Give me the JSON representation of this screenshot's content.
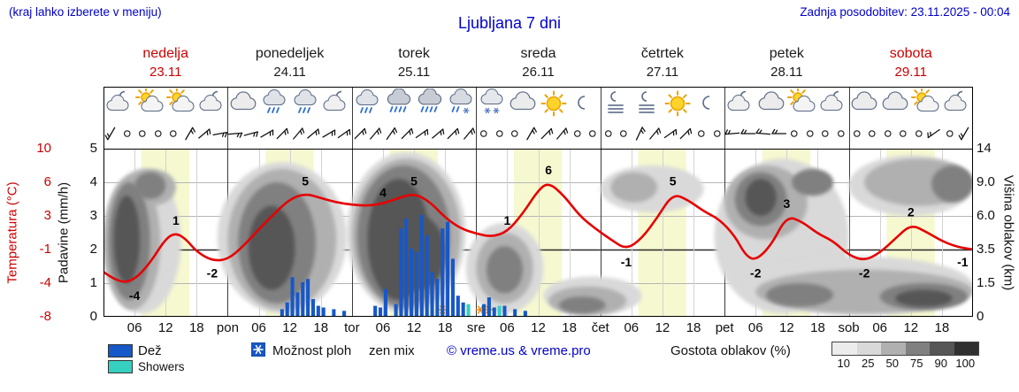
{
  "header": {
    "hint": "(kraj lahko izberete v meniju)",
    "title": "Ljubljana 7 dni",
    "updated": "Zadnja posodobitev: 23.11.2025 - 00:04"
  },
  "days": [
    {
      "name": "nedelja",
      "date": "23.11",
      "weekend": true
    },
    {
      "name": "ponedeljek",
      "date": "24.11",
      "weekend": false
    },
    {
      "name": "torek",
      "date": "25.11",
      "weekend": false
    },
    {
      "name": "sreda",
      "date": "26.11",
      "weekend": false
    },
    {
      "name": "četrtek",
      "date": "27.11",
      "weekend": false
    },
    {
      "name": "petek",
      "date": "28.11",
      "weekend": false
    },
    {
      "name": "sobota",
      "date": "29.11",
      "weekend": true
    }
  ],
  "axes": {
    "temp": {
      "label": "Temperatura (°C)",
      "ticks": [
        "10",
        "6",
        "3",
        "-1",
        "-4",
        "-8"
      ]
    },
    "precip": {
      "label": "Padavine (mm/h)",
      "ticks": [
        "5",
        "4",
        "3",
        "2",
        "1",
        "0"
      ]
    },
    "cloud": {
      "label": "Višina oblakov (km)",
      "ticks": [
        "14",
        "9.0",
        "6.0",
        "3.5",
        "1.5",
        "0"
      ]
    },
    "x": {
      "hour_labels": [
        "06",
        "12",
        "18"
      ],
      "day_abbrevs": [
        "pon",
        "tor",
        "sre",
        "čet",
        "pet",
        "sob"
      ]
    }
  },
  "legend": {
    "rain": "Dež",
    "showers": "Showers",
    "chance": "Možnost ploh",
    "mix": "zen mix",
    "copyright": "© vreme.us & vreme.pro",
    "cloud_density": "Gostota oblakov (%)",
    "density_ticks": [
      "10",
      "25",
      "50",
      "75",
      "90",
      "100"
    ]
  },
  "colors": {
    "accent_blue": "#0000cc",
    "day_red": "#cc0000",
    "temp_line": "#e60000",
    "rain": "#1758c8",
    "shower": "#36d0c0",
    "daylight_band": "#f6f9d0",
    "chance_marker": "#f08c00",
    "cloud_scale": [
      "#ececec",
      "#d9d9d9",
      "#b0b0b0",
      "#808080",
      "#565656",
      "#303030"
    ]
  },
  "chart_data": {
    "type": "mixed",
    "x_unit": "hours since Sun 23.11 00:00",
    "x_range": [
      0,
      168
    ],
    "temperature_scale_c": [
      -8,
      -4,
      -1,
      3,
      6,
      10
    ],
    "precip_scale_mm_h": [
      0,
      5
    ],
    "cloud_height_scale_km": [
      0,
      1.5,
      3.5,
      6.0,
      9.0,
      14
    ],
    "daylight_hours": {
      "from": 7.3,
      "to": 16.6
    },
    "temperature_c": [
      [
        0,
        -3
      ],
      [
        3,
        -4
      ],
      [
        6,
        -3.7
      ],
      [
        9,
        -2.2
      ],
      [
        12,
        0.3
      ],
      [
        14,
        1
      ],
      [
        16,
        0.2
      ],
      [
        18,
        -1.2
      ],
      [
        21,
        -2
      ],
      [
        24,
        -1.9
      ],
      [
        27,
        -0.6
      ],
      [
        30,
        1.4
      ],
      [
        33,
        3.2
      ],
      [
        36,
        4.5
      ],
      [
        39,
        5
      ],
      [
        42,
        4.6
      ],
      [
        45,
        4.2
      ],
      [
        48,
        4
      ],
      [
        51,
        3.9
      ],
      [
        54,
        4.1
      ],
      [
        57,
        4.6
      ],
      [
        60,
        5
      ],
      [
        63,
        4.3
      ],
      [
        66,
        2.8
      ],
      [
        69,
        1.5
      ],
      [
        72,
        0.9
      ],
      [
        75,
        0.5
      ],
      [
        78,
        1.1
      ],
      [
        81,
        3.2
      ],
      [
        84,
        5.3
      ],
      [
        86,
        6
      ],
      [
        89,
        4.8
      ],
      [
        92,
        3
      ],
      [
        95,
        1.5
      ],
      [
        98,
        0.2
      ],
      [
        101,
        -1
      ],
      [
        104,
        0.3
      ],
      [
        107,
        2.8
      ],
      [
        110,
        5
      ],
      [
        113,
        4.4
      ],
      [
        116,
        3.4
      ],
      [
        119,
        2.6
      ],
      [
        122,
        0.6
      ],
      [
        124,
        -1.5
      ],
      [
        126,
        -2
      ],
      [
        129,
        -0.5
      ],
      [
        132,
        3
      ],
      [
        135,
        2.3
      ],
      [
        138,
        0.9
      ],
      [
        141,
        0
      ],
      [
        144,
        -1.5
      ],
      [
        147,
        -2
      ],
      [
        150,
        -1.3
      ],
      [
        153,
        0.3
      ],
      [
        156,
        2
      ],
      [
        159,
        1.1
      ],
      [
        162,
        0
      ],
      [
        165,
        -0.7
      ],
      [
        168,
        -1
      ]
    ],
    "temperature_labels": [
      {
        "h": 6,
        "v": -4,
        "p": "b"
      },
      {
        "h": 14,
        "v": 1,
        "p": "a"
      },
      {
        "h": 21,
        "v": -2,
        "p": "b"
      },
      {
        "h": 39,
        "v": 5,
        "p": "a"
      },
      {
        "h": 54,
        "v": 4,
        "p": "a"
      },
      {
        "h": 60,
        "v": 5,
        "p": "a"
      },
      {
        "h": 78,
        "v": 1,
        "p": "a"
      },
      {
        "h": 86,
        "v": 6,
        "p": "a"
      },
      {
        "h": 101,
        "v": -1,
        "p": "b"
      },
      {
        "h": 110,
        "v": 5,
        "p": "a"
      },
      {
        "h": 126,
        "v": -2,
        "p": "b"
      },
      {
        "h": 132,
        "v": 3,
        "p": "a"
      },
      {
        "h": 147,
        "v": -2,
        "p": "b"
      },
      {
        "h": 156,
        "v": 2,
        "p": "a"
      },
      {
        "h": 166,
        "v": -1,
        "p": "b"
      }
    ],
    "rain_mm_h": [
      [
        34,
        0.2
      ],
      [
        35,
        0.4
      ],
      [
        36,
        1.15
      ],
      [
        37,
        0.7
      ],
      [
        38,
        1.0
      ],
      [
        39,
        1.1
      ],
      [
        40,
        0.5
      ],
      [
        41,
        0.3
      ],
      [
        42,
        0.25
      ],
      [
        44,
        0.2
      ],
      [
        46,
        0.15
      ],
      [
        52,
        0.3
      ],
      [
        53,
        0.25
      ],
      [
        54,
        0.8
      ],
      [
        56,
        0.35
      ],
      [
        57,
        2.6
      ],
      [
        58,
        2.9
      ],
      [
        59,
        2.0
      ],
      [
        60,
        1.9
      ],
      [
        61,
        3.0
      ],
      [
        62,
        2.4
      ],
      [
        63,
        1.3
      ],
      [
        64,
        1.1
      ],
      [
        65,
        2.6
      ],
      [
        66,
        2.8
      ],
      [
        67,
        1.7
      ],
      [
        68,
        0.6
      ],
      [
        69,
        0.4
      ],
      [
        73,
        0.35
      ],
      [
        74,
        0.55
      ],
      [
        75,
        0.25
      ],
      [
        77,
        0.3
      ],
      [
        79,
        0.2
      ],
      [
        81,
        0.15
      ]
    ],
    "showers_mm_h": [
      [
        70,
        0.35
      ],
      [
        76,
        0.3
      ]
    ],
    "shower_chance_h": [
      65.5,
      72.8,
      74.4
    ],
    "clouds": [
      {
        "h0": 0,
        "h1": 15,
        "g0": 0.1,
        "g1": 4.4,
        "d": 25
      },
      {
        "h0": 22,
        "h1": 47,
        "g0": 0.1,
        "g1": 4.6,
        "d": 25
      },
      {
        "h0": 47,
        "h1": 70,
        "g0": 0.1,
        "g1": 4.9,
        "d": 25
      },
      {
        "h0": 70,
        "h1": 85,
        "g0": 0.1,
        "g1": 2.8,
        "d": 25
      },
      {
        "h0": 85,
        "h1": 104,
        "g0": 0.05,
        "g1": 1.2,
        "d": 25
      },
      {
        "h0": 96,
        "h1": 116,
        "g0": 3.1,
        "g1": 4.5,
        "d": 25
      },
      {
        "h0": 118,
        "h1": 144,
        "g0": 0.1,
        "g1": 4.7,
        "d": 25
      },
      {
        "h0": 124,
        "h1": 168,
        "g0": 0.05,
        "g1": 1.8,
        "d": 25
      },
      {
        "h0": 144,
        "h1": 168,
        "g0": 3.0,
        "g1": 4.8,
        "d": 25
      },
      {
        "h0": 0,
        "h1": 11,
        "g0": 0.2,
        "g1": 4.2,
        "d": 50
      },
      {
        "h0": 4,
        "h1": 14,
        "g0": 3.3,
        "g1": 4.4,
        "d": 50
      },
      {
        "h0": 24,
        "h1": 45,
        "g0": 0.2,
        "g1": 4.4,
        "d": 50
      },
      {
        "h0": 48,
        "h1": 69,
        "g0": 0.2,
        "g1": 4.7,
        "d": 50
      },
      {
        "h0": 72,
        "h1": 83,
        "g0": 0.4,
        "g1": 2.5,
        "d": 50
      },
      {
        "h0": 86,
        "h1": 101,
        "g0": 0.05,
        "g1": 0.9,
        "d": 50
      },
      {
        "h0": 98,
        "h1": 107,
        "g0": 3.4,
        "g1": 4.3,
        "d": 50
      },
      {
        "h0": 120,
        "h1": 136,
        "g0": 2.3,
        "g1": 4.5,
        "d": 50
      },
      {
        "h0": 126,
        "h1": 168,
        "g0": 0.1,
        "g1": 1.4,
        "d": 50
      },
      {
        "h0": 147,
        "h1": 168,
        "g0": 3.3,
        "g1": 4.7,
        "d": 50
      },
      {
        "h0": 1,
        "h1": 9,
        "g0": 0.5,
        "g1": 4.0,
        "d": 75
      },
      {
        "h0": 6,
        "h1": 12,
        "g0": 3.5,
        "g1": 4.3,
        "d": 75
      },
      {
        "h0": 26,
        "h1": 41,
        "g0": 0.4,
        "g1": 4.0,
        "d": 75
      },
      {
        "h0": 49,
        "h1": 67,
        "g0": 0.3,
        "g1": 4.5,
        "d": 75
      },
      {
        "h0": 74,
        "h1": 81,
        "g0": 0.7,
        "g1": 2.1,
        "d": 75
      },
      {
        "h0": 88,
        "h1": 97,
        "g0": 0.1,
        "g1": 0.6,
        "d": 75
      },
      {
        "h0": 122,
        "h1": 132,
        "g0": 2.7,
        "g1": 4.3,
        "d": 75
      },
      {
        "h0": 133,
        "h1": 141,
        "g0": 3.6,
        "g1": 4.4,
        "d": 75
      },
      {
        "h0": 128,
        "h1": 141,
        "g0": 0.3,
        "g1": 1.0,
        "d": 75
      },
      {
        "h0": 150,
        "h1": 167,
        "g0": 0.2,
        "g1": 1.0,
        "d": 75
      },
      {
        "h0": 160,
        "h1": 168,
        "g0": 3.4,
        "g1": 4.5,
        "d": 75
      },
      {
        "h0": 2,
        "h1": 7,
        "g0": 1.0,
        "g1": 3.6,
        "d": 90
      },
      {
        "h0": 28,
        "h1": 37,
        "g0": 0.8,
        "g1": 3.3,
        "d": 90
      },
      {
        "h0": 51,
        "h1": 63,
        "g0": 0.5,
        "g1": 4.1,
        "d": 90
      },
      {
        "h0": 56,
        "h1": 66,
        "g0": 0.8,
        "g1": 3.0,
        "d": 90
      },
      {
        "h0": 124,
        "h1": 130,
        "g0": 3.0,
        "g1": 4.1,
        "d": 90
      },
      {
        "h0": 153,
        "h1": 164,
        "g0": 0.3,
        "g1": 0.8,
        "d": 90
      }
    ],
    "weather_icons": [
      "cloud-moon",
      "partly-sunny",
      "partly-sunny",
      "cloud-moon",
      "cloud",
      "rain",
      "rain",
      "cloud-moon",
      "rain",
      "heavy-rain",
      "heavy-rain",
      "sleet",
      "snow",
      "cloud",
      "sunny",
      "moon",
      "fog-moon",
      "fog-moon",
      "sunny",
      "moon",
      "cloud-moon",
      "cloud",
      "partly-sunny",
      "cloud-moon",
      "cloud",
      "cloud",
      "partly-sunny",
      "cloud-moon"
    ],
    "wind": [
      "b210",
      "c",
      "c",
      "c",
      "c",
      "b30",
      "b50",
      "b80",
      "b85",
      "b75",
      "b60",
      "b45",
      "b40",
      "b50",
      "b60",
      "b55",
      "b45",
      "b40",
      "b35",
      "b45",
      "b55",
      "b50",
      "b45",
      "b40",
      "c",
      "c",
      "c",
      "b30",
      "b45",
      "b40",
      "c",
      "c",
      "c",
      "c",
      "b25",
      "b40",
      "b55",
      "b45",
      "c",
      "c",
      "b265",
      "b270",
      "b275",
      "b270",
      "c",
      "c",
      "c",
      "c",
      "c",
      "c",
      "c",
      "c",
      "c",
      "b235",
      "c",
      "b210"
    ]
  }
}
